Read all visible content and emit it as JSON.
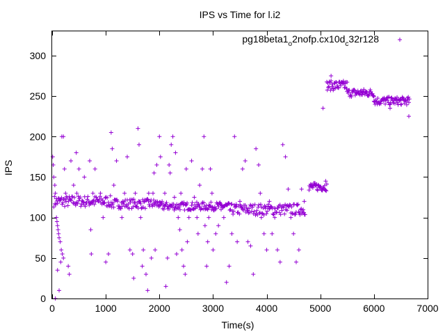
{
  "chart_data": {
    "type": "scatter",
    "title": "IPS vs Time for l.i2",
    "xlabel": "Time(s)",
    "ylabel": "IPS",
    "xlim": [
      0,
      7000
    ],
    "ylim": [
      0,
      330
    ],
    "x_ticks": [
      0,
      1000,
      2000,
      3000,
      4000,
      5000,
      6000,
      7000
    ],
    "x_tick_labels": [
      "0",
      "1000",
      "2000",
      "3000",
      "4000",
      "5000",
      "6000",
      "7000"
    ],
    "y_ticks": [
      0,
      50,
      100,
      150,
      200,
      250,
      300
    ],
    "y_tick_labels": [
      "0",
      "50",
      "100",
      "150",
      "200",
      "250",
      "300"
    ],
    "grid": false,
    "legend_position": "top-right",
    "marker": "plus",
    "color": "#9400d3",
    "series": [
      {
        "name": "pg18beta1_o2nofp.cx10d_c32r128",
        "legend": {
          "base": "pg18beta1",
          "sub1": "o",
          "mid": "2nofp.cx10d",
          "sub2": "c",
          "tail": "32r128"
        },
        "segments": [
          {
            "x_start": 30,
            "x_end": 1100,
            "step": 12,
            "mean": 120,
            "spread": 7
          },
          {
            "x_start": 1100,
            "x_end": 2000,
            "step": 12,
            "mean": 117,
            "spread": 6
          },
          {
            "x_start": 2000,
            "x_end": 3300,
            "step": 12,
            "mean": 114,
            "spread": 5
          },
          {
            "x_start": 3300,
            "x_end": 4720,
            "step": 12,
            "mean": 110,
            "spread": 7
          },
          {
            "x_start": 4790,
            "x_end": 5120,
            "step": 10,
            "mean": 138,
            "spread": 5
          },
          {
            "x_start": 5120,
            "x_end": 5500,
            "step": 10,
            "mean": 263,
            "spread": 6
          },
          {
            "x_start": 5500,
            "x_end": 6000,
            "step": 10,
            "mean": 254,
            "spread": 5
          },
          {
            "x_start": 6000,
            "x_end": 6660,
            "step": 10,
            "mean": 244,
            "spread": 5
          }
        ],
        "points": [
          [
            10,
            175
          ],
          [
            20,
            165
          ],
          [
            30,
            150
          ],
          [
            50,
            140
          ],
          [
            60,
            130
          ],
          [
            80,
            100
          ],
          [
            90,
            95
          ],
          [
            100,
            90
          ],
          [
            110,
            85
          ],
          [
            120,
            80
          ],
          [
            130,
            75
          ],
          [
            150,
            70
          ],
          [
            170,
            60
          ],
          [
            190,
            55
          ],
          [
            210,
            50
          ],
          [
            100,
            35
          ],
          [
            130,
            10
          ],
          [
            60,
            0
          ],
          [
            160,
            45
          ],
          [
            180,
            200
          ],
          [
            210,
            200
          ],
          [
            230,
            160
          ],
          [
            250,
            130
          ],
          [
            300,
            40
          ],
          [
            320,
            30
          ],
          [
            350,
            170
          ],
          [
            400,
            140
          ],
          [
            450,
            180
          ],
          [
            460,
            130
          ],
          [
            500,
            160
          ],
          [
            600,
            150
          ],
          [
            700,
            170
          ],
          [
            720,
            85
          ],
          [
            730,
            55
          ],
          [
            760,
            130
          ],
          [
            800,
            160
          ],
          [
            900,
            130
          ],
          [
            950,
            100
          ],
          [
            1000,
            45
          ],
          [
            1050,
            55
          ],
          [
            1100,
            205
          ],
          [
            1120,
            185
          ],
          [
            1150,
            140
          ],
          [
            1200,
            170
          ],
          [
            1300,
            100
          ],
          [
            1350,
            130
          ],
          [
            1400,
            175
          ],
          [
            1450,
            60
          ],
          [
            1500,
            55
          ],
          [
            1520,
            25
          ],
          [
            1550,
            130
          ],
          [
            1600,
            210
          ],
          [
            1620,
            190
          ],
          [
            1650,
            100
          ],
          [
            1680,
            40
          ],
          [
            1700,
            60
          ],
          [
            1720,
            120
          ],
          [
            1750,
            30
          ],
          [
            1780,
            10
          ],
          [
            1800,
            130
          ],
          [
            1850,
            50
          ],
          [
            1880,
            130
          ],
          [
            1900,
            155
          ],
          [
            1920,
            60
          ],
          [
            1950,
            165
          ],
          [
            2000,
            200
          ],
          [
            2020,
            175
          ],
          [
            2050,
            120
          ],
          [
            2100,
            130
          ],
          [
            2120,
            15
          ],
          [
            2150,
            50
          ],
          [
            2180,
            165
          ],
          [
            2200,
            155
          ],
          [
            2220,
            190
          ],
          [
            2250,
            200
          ],
          [
            2280,
            125
          ],
          [
            2300,
            180
          ],
          [
            2320,
            55
          ],
          [
            2350,
            100
          ],
          [
            2380,
            85
          ],
          [
            2400,
            130
          ],
          [
            2420,
            60
          ],
          [
            2450,
            40
          ],
          [
            2480,
            30
          ],
          [
            2500,
            160
          ],
          [
            2520,
            70
          ],
          [
            2550,
            100
          ],
          [
            2600,
            170
          ],
          [
            2650,
            125
          ],
          [
            2700,
            100
          ],
          [
            2720,
            80
          ],
          [
            2750,
            140
          ],
          [
            2800,
            160
          ],
          [
            2830,
            200
          ],
          [
            2850,
            90
          ],
          [
            2880,
            40
          ],
          [
            2900,
            70
          ],
          [
            2920,
            100
          ],
          [
            2950,
            160
          ],
          [
            2980,
            130
          ],
          [
            3000,
            60
          ],
          [
            3050,
            80
          ],
          [
            3100,
            90
          ],
          [
            3150,
            110
          ],
          [
            3200,
            100
          ],
          [
            3250,
            20
          ],
          [
            3300,
            40
          ],
          [
            3350,
            80
          ],
          [
            3400,
            200
          ],
          [
            3450,
            70
          ],
          [
            3500,
            120
          ],
          [
            3550,
            160
          ],
          [
            3600,
            170
          ],
          [
            3650,
            70
          ],
          [
            3700,
            65
          ],
          [
            3750,
            30
          ],
          [
            3800,
            185
          ],
          [
            3850,
            165
          ],
          [
            3880,
            130
          ],
          [
            3900,
            100
          ],
          [
            3950,
            80
          ],
          [
            4000,
            60
          ],
          [
            4050,
            120
          ],
          [
            4100,
            80
          ],
          [
            4150,
            100
          ],
          [
            4200,
            60
          ],
          [
            4250,
            45
          ],
          [
            4300,
            190
          ],
          [
            4350,
            175
          ],
          [
            4400,
            135
          ],
          [
            4450,
            100
          ],
          [
            4500,
            80
          ],
          [
            4550,
            45
          ],
          [
            4600,
            60
          ],
          [
            4650,
            135
          ],
          [
            4700,
            120
          ],
          [
            5050,
            235
          ],
          [
            5100,
            145
          ],
          [
            5200,
            275
          ],
          [
            6300,
            235
          ],
          [
            6500,
            240
          ],
          [
            6650,
            225
          ]
        ]
      }
    ]
  }
}
